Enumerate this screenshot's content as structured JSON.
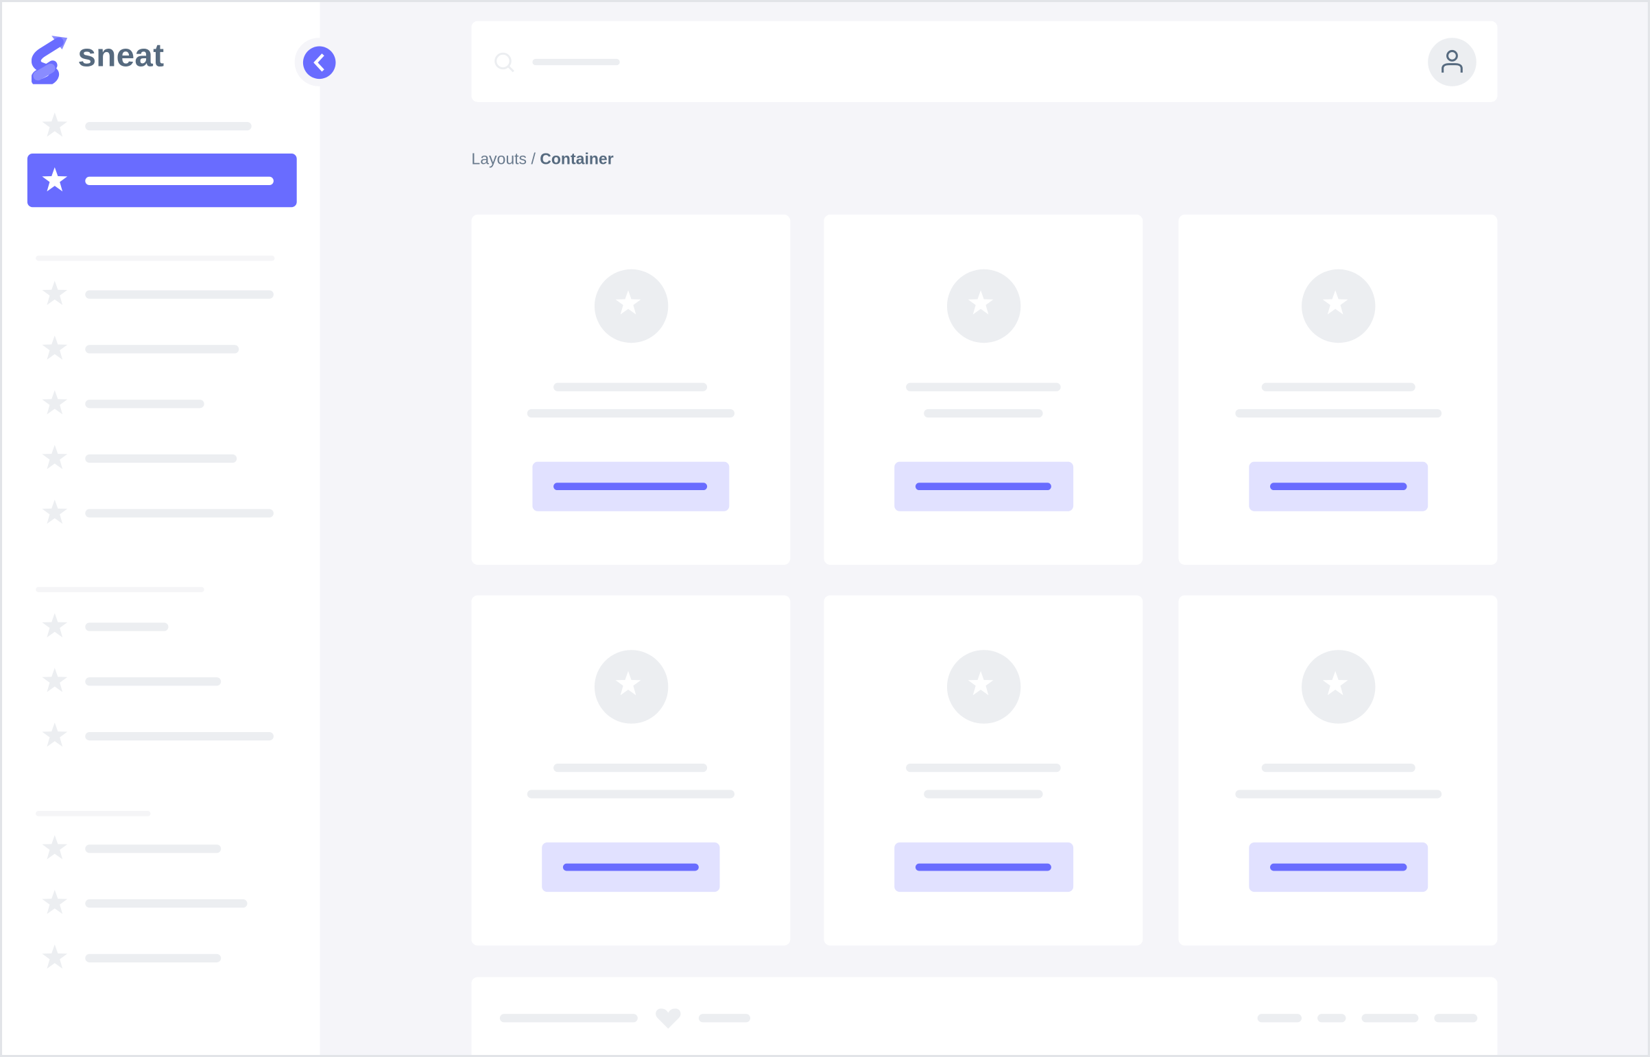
{
  "brand": {
    "name": "sneat",
    "color": "#696cff",
    "text_color": "#566a7f"
  },
  "sidebar": {
    "toggle_icon": "chevron-left-icon",
    "item_icon": "star-icon",
    "active_index": 1
  },
  "navbar": {
    "search_icon": "search-icon",
    "user_icon": "user-icon"
  },
  "breadcrumb": {
    "parent": "Layouts",
    "separator": "/",
    "current": "Container"
  },
  "cards": {
    "count": 6,
    "icon": "star-icon"
  },
  "footer": {
    "icon": "heart-icon"
  },
  "colors": {
    "primary": "#696cff",
    "primary_light": "#e1e1ff",
    "background": "#f5f5f9",
    "placeholder": "#eceef1"
  }
}
